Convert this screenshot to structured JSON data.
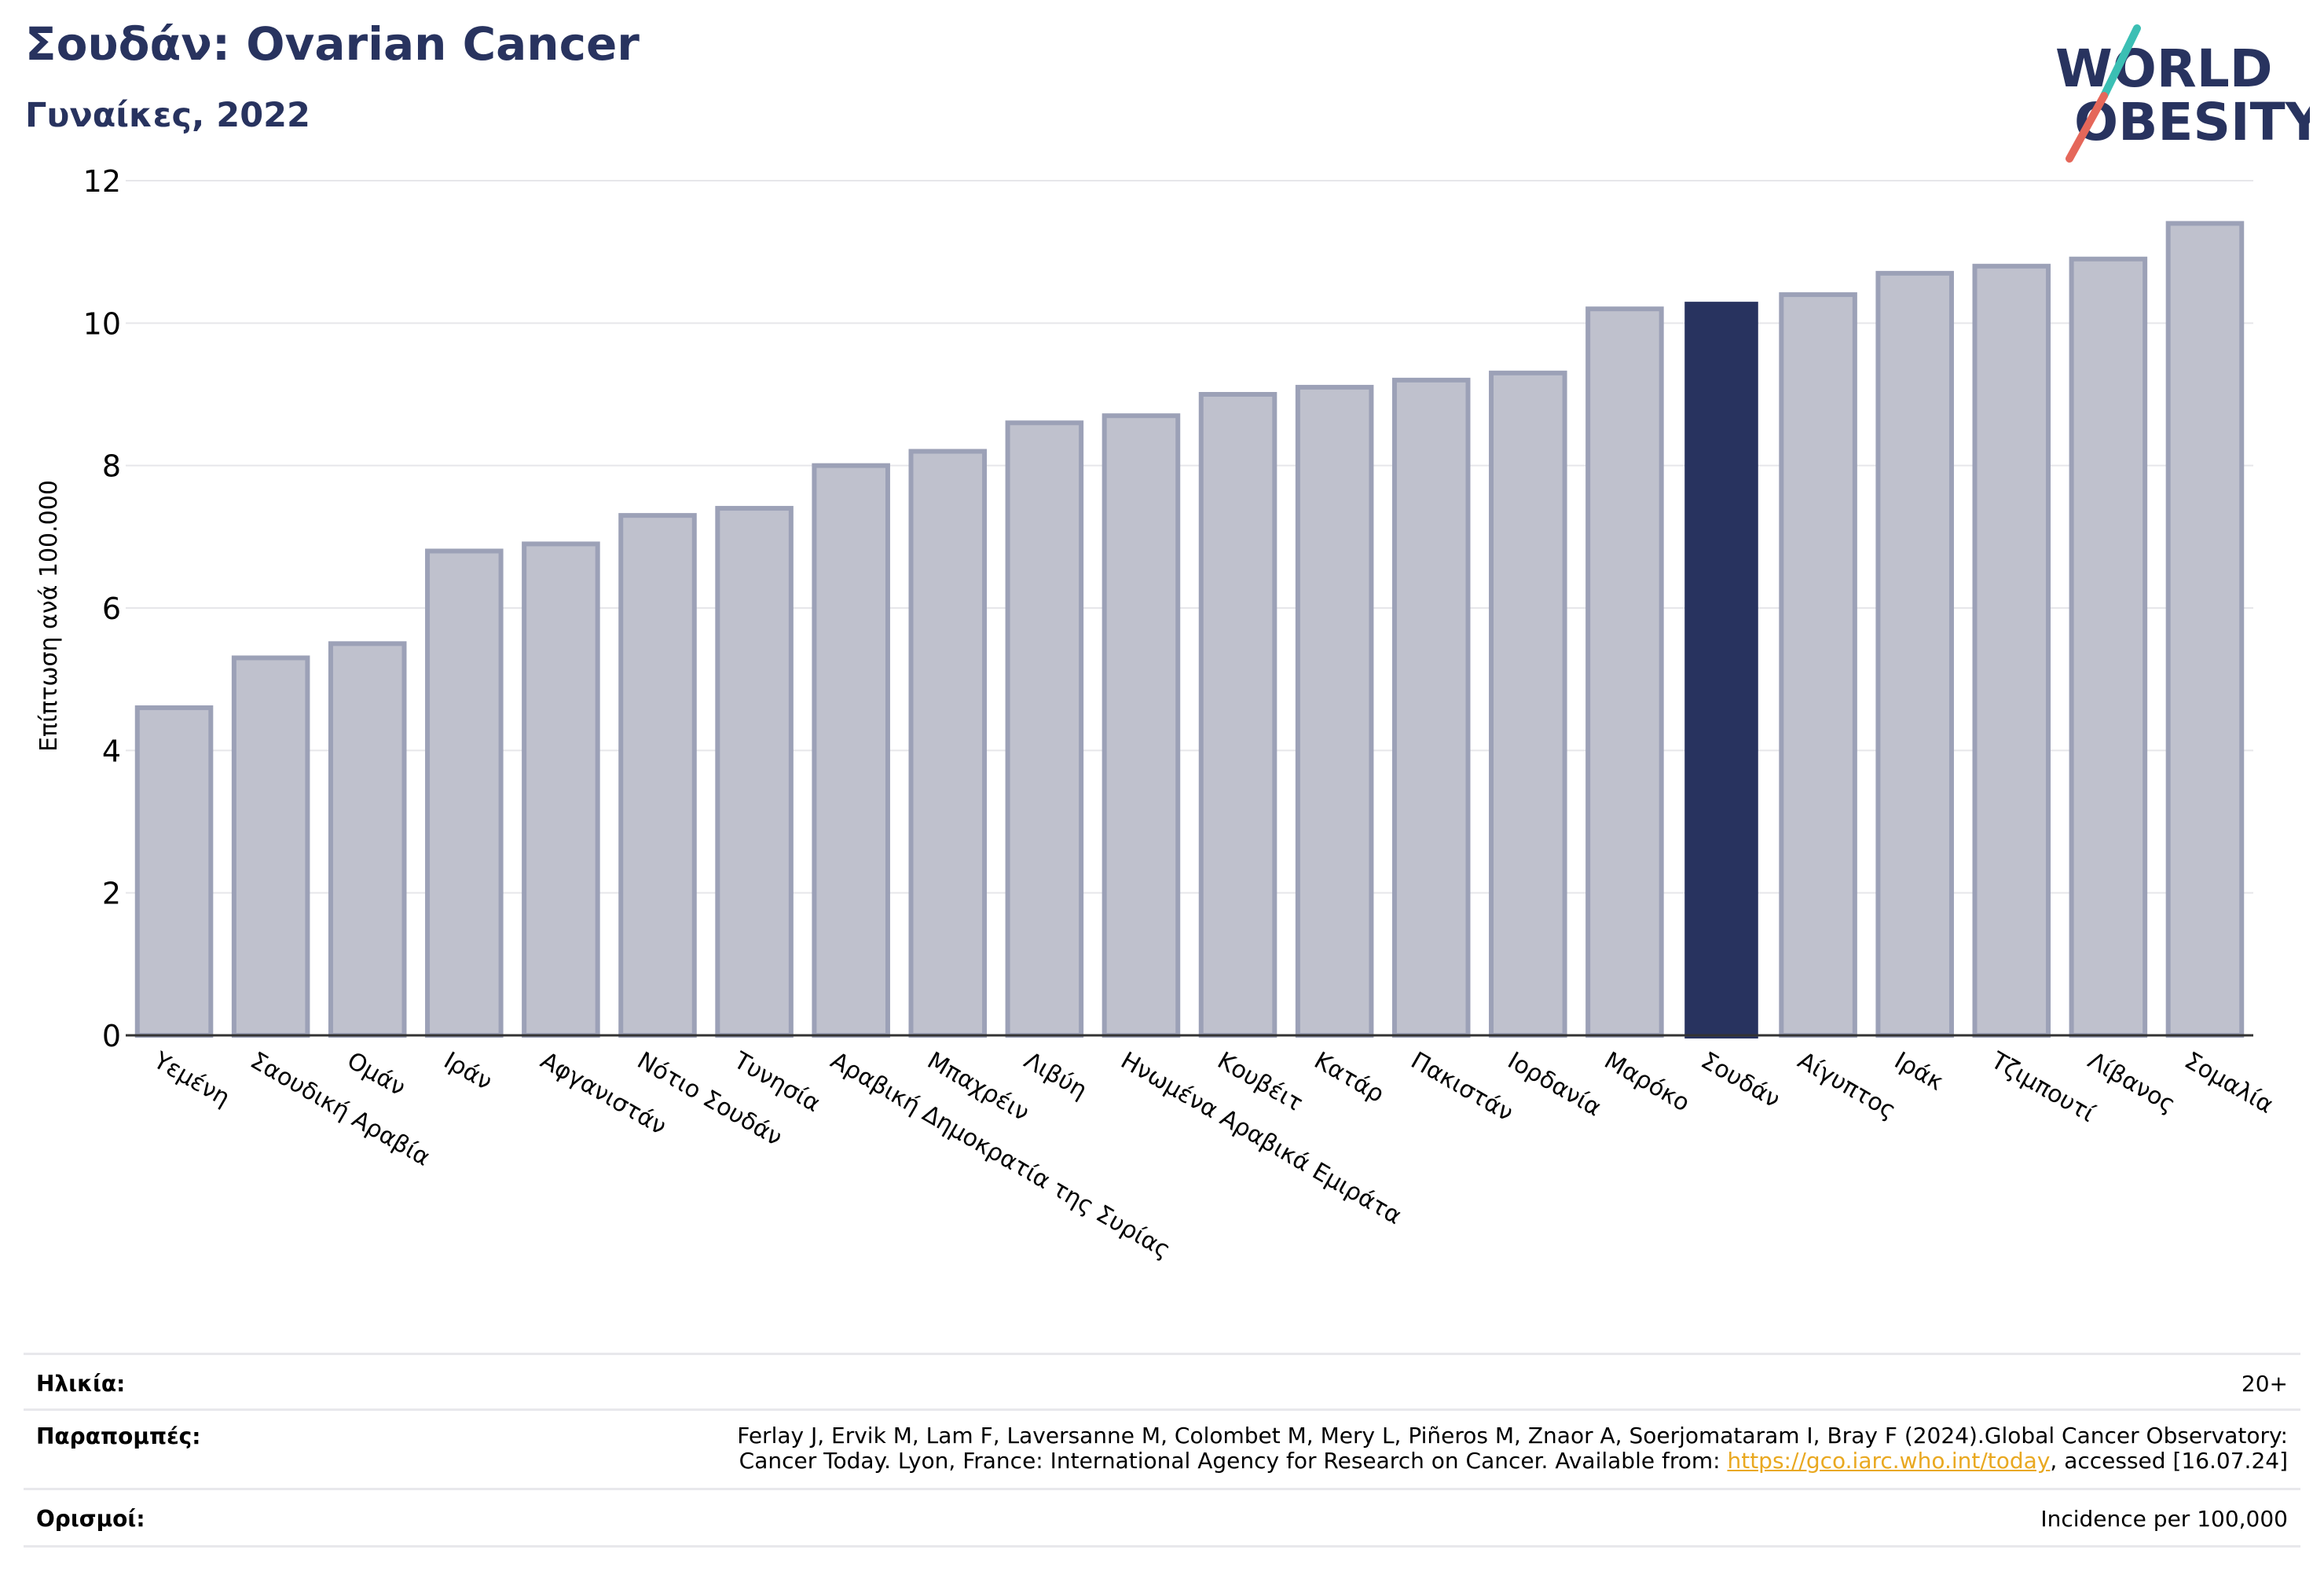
{
  "header": {
    "title": "Σουδάν: Ovarian Cancer",
    "subtitle": "Γυναίκες, 2022"
  },
  "logo": {
    "line1": "WORLD",
    "line2": "OBESITY"
  },
  "colors": {
    "bar": "#bfc1cd",
    "bar_stroke": "#9ca1b7",
    "highlight": "#28335f",
    "grid": "#e6e6ea",
    "axis": "#333333"
  },
  "chart_data": {
    "type": "bar",
    "ylabel": "Επίπτωση ανά 100.000",
    "ylim": [
      0,
      12
    ],
    "yticks": [
      0,
      2,
      4,
      6,
      8,
      10,
      12
    ],
    "highlight": "Σουδάν",
    "categories": [
      "Υεμένη",
      "Σαουδική Αραβία",
      "Ομάν",
      "Ιράν",
      "Αφγανιστάν",
      "Νότιο Σουδάν",
      "Τυνησία",
      "Αραβική Δημοκρατία της Συρίας",
      "Μπαχρέιν",
      "Λιβύη",
      "Ηνωμένα Αραβικά Εμιράτα",
      "Κουβέιτ",
      "Κατάρ",
      "Πακιστάν",
      "Ιορδανία",
      "Μαρόκο",
      "Σουδάν",
      "Αίγυπτος",
      "Ιράκ",
      "Τζιμπουτί",
      "Λίβανος",
      "Σομαλία"
    ],
    "values": [
      4.6,
      5.3,
      5.5,
      6.8,
      6.9,
      7.3,
      7.4,
      8.0,
      8.2,
      8.6,
      8.7,
      9.0,
      9.1,
      9.2,
      9.3,
      10.2,
      10.3,
      10.4,
      10.7,
      10.8,
      10.9,
      11.4
    ]
  },
  "footer": {
    "age_label": "Ηλικία:",
    "age_value": "20+",
    "refs_label": "Παραπομπές:",
    "refs_line1": "Ferlay J, Ervik M, Lam F, Laversanne M, Colombet M, Mery L, Piñeros M, Znaor A, Soerjomataram I, Bray F (2024).Global Cancer Observatory:",
    "refs_line2_pre": "Cancer Today. Lyon, France: International Agency for Research on Cancer. Available from: ",
    "refs_link": "https://gco.iarc.who.int/today",
    "refs_line2_post": ", accessed [16.07.24]",
    "def_label": "Ορισμοί:",
    "def_value": "Incidence per 100,000"
  }
}
